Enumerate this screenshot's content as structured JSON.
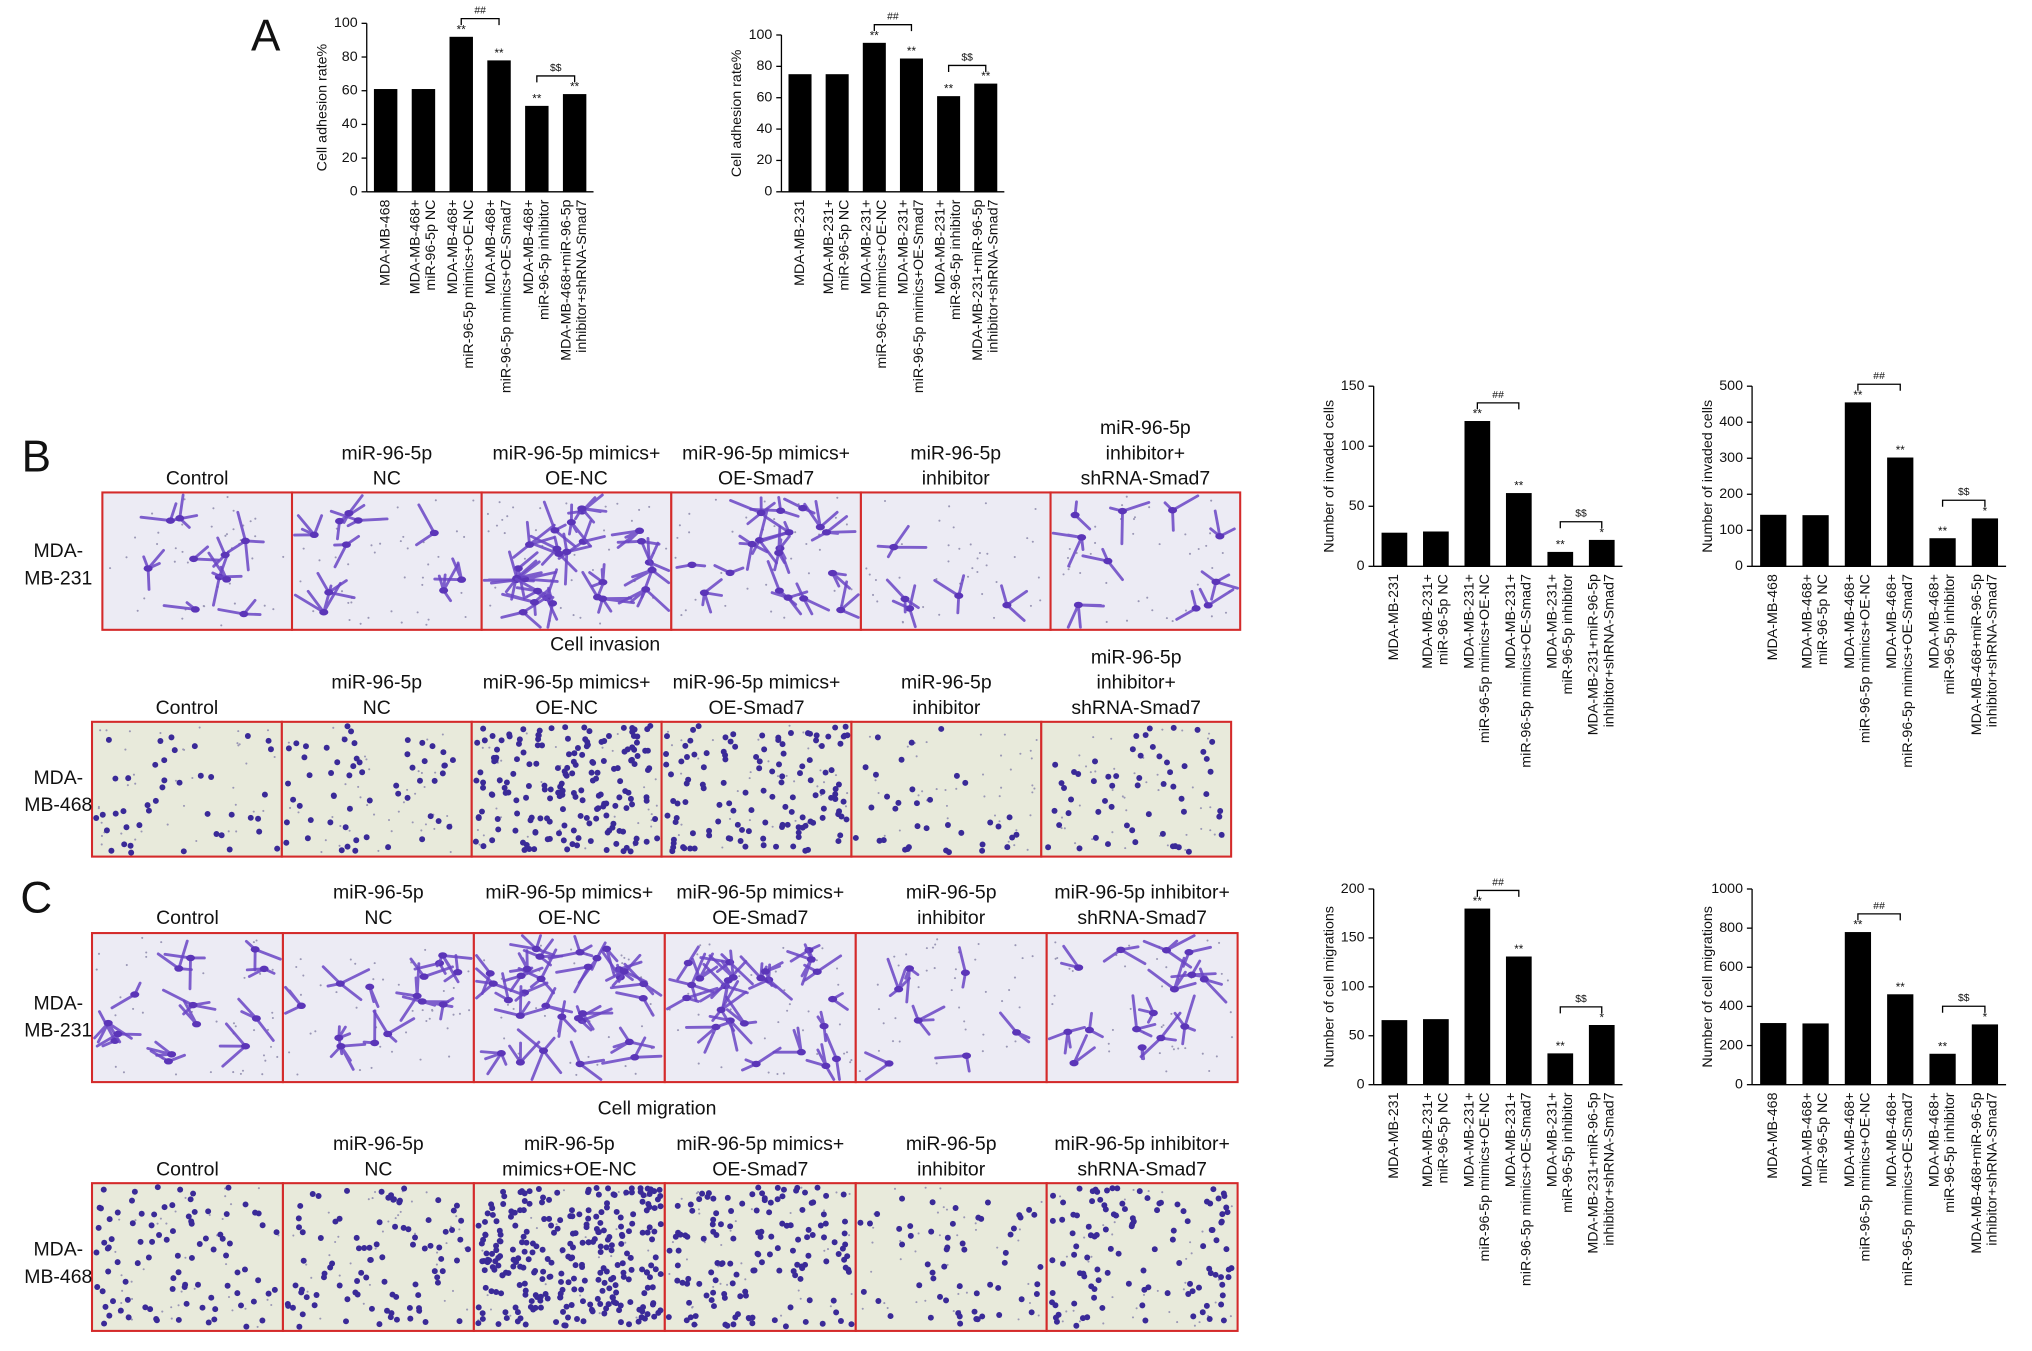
{
  "figure": {
    "panel_labels": [
      "A",
      "B",
      "C"
    ],
    "captions": [
      "Cell invasion",
      "Cell migration"
    ],
    "image_rows": [
      {
        "row_label": [
          "MDA-",
          "MB-231"
        ],
        "headers": [
          [
            "Control"
          ],
          [
            "miR-96-5p",
            "NC"
          ],
          [
            "miR-96-5p mimics+",
            "OE-NC"
          ],
          [
            "miR-96-5p mimics+",
            "OE-Smad7"
          ],
          [
            "miR-96-5p",
            "inhibitor"
          ],
          [
            "miR-96-5p",
            "inhibitor+",
            "shRNA-Smad7"
          ]
        ]
      },
      {
        "row_label": [
          "MDA-",
          "MB-468"
        ],
        "headers": [
          [
            "Control"
          ],
          [
            "miR-96-5p",
            "NC"
          ],
          [
            "miR-96-5p mimics+",
            "OE-NC"
          ],
          [
            "miR-96-5p mimics+",
            "OE-Smad7"
          ],
          [
            "miR-96-5p",
            "inhibitor"
          ],
          [
            "miR-96-5p",
            "inhibitor+",
            "shRNA-Smad7"
          ]
        ]
      },
      {
        "row_label": [
          "MDA-",
          "MB-231"
        ],
        "headers": [
          [
            "Control"
          ],
          [
            "miR-96-5p",
            "NC"
          ],
          [
            "miR-96-5p mimics+",
            "OE-NC"
          ],
          [
            "miR-96-5p mimics+",
            "OE-Smad7"
          ],
          [
            "miR-96-5p",
            "inhibitor"
          ],
          [
            "miR-96-5p inhibitor+",
            "shRNA-Smad7"
          ]
        ]
      },
      {
        "row_label": [
          "MDA-",
          "MB-468"
        ],
        "headers": [
          [
            "Control"
          ],
          [
            "miR-96-5p",
            "NC"
          ],
          [
            "miR-96-5p",
            "mimics+OE-NC"
          ],
          [
            "miR-96-5p mimics+",
            "OE-Smad7"
          ],
          [
            "miR-96-5p",
            "inhibitor"
          ],
          [
            "miR-96-5p inhibitor+",
            "shRNA-Smad7"
          ]
        ]
      }
    ]
  },
  "chart_data": [
    {
      "type": "bar",
      "y_label": "Cell adhesion rate%",
      "color": "#000000",
      "ylim": [
        0,
        100
      ],
      "yticks": [
        0,
        20,
        40,
        60,
        80,
        100
      ],
      "categories": [
        [
          "MDA-MB-468"
        ],
        [
          "MDA-MB-468+",
          "miR-96-5p NC"
        ],
        [
          "MDA-MB-468+",
          "miR-96-5p mimics+OE-NC"
        ],
        [
          "MDA-MB-468+",
          "miR-96-5p mimics+OE-Smad7"
        ],
        [
          "MDA-MB-468+",
          "miR-96-5p inhibitor"
        ],
        [
          "MDA-MB-468+miR-96-5p",
          "inhibitor+shRNA-Smad7"
        ]
      ],
      "values": [
        61,
        61,
        92,
        78,
        51,
        58
      ],
      "significance": [
        null,
        null,
        "**",
        "**",
        "**",
        "**"
      ],
      "brackets": [
        "##",
        "$$"
      ]
    },
    {
      "type": "bar",
      "y_label": "Cell adhesion rate%",
      "color": "#000000",
      "ylim": [
        0,
        100
      ],
      "yticks": [
        0,
        20,
        40,
        60,
        80,
        100
      ],
      "categories": [
        [
          "MDA-MB-231"
        ],
        [
          "MDA-MB-231+",
          "miR-96-5p NC"
        ],
        [
          "MDA-MB-231+",
          "miR-96-5p mimics+OE-NC"
        ],
        [
          "MDA-MB-231+",
          "miR-96-5p mimics+OE-Smad7"
        ],
        [
          "MDA-MB-231+",
          "miR-96-5p inhibitor"
        ],
        [
          "MDA-MB-231+miR-96-5p",
          "inhibitor+shRNA-Smad7"
        ]
      ],
      "values": [
        75,
        75,
        95,
        85,
        61,
        69
      ],
      "significance": [
        null,
        null,
        "**",
        "**",
        "**",
        "**"
      ],
      "brackets": [
        "##",
        "$$"
      ]
    },
    {
      "type": "bar",
      "y_label": "Number of invaded cells",
      "color": "#000000",
      "ylim": [
        0,
        150
      ],
      "yticks": [
        0,
        50,
        100,
        150
      ],
      "categories": [
        [
          "MDA-MB-231"
        ],
        [
          "MDA-MB-231+",
          "miR-96-5p NC"
        ],
        [
          "MDA-MB-231+",
          "miR-96-5p mimics+OE-NC"
        ],
        [
          "MDA-MB-231+",
          "miR-96-5p mimics+OE-Smad7"
        ],
        [
          "MDA-MB-231+",
          "miR-96-5p inhibitor"
        ],
        [
          "MDA-MB-231+miR-96-5p",
          "inhibitor+shRNA-Smad7"
        ]
      ],
      "values": [
        28,
        29,
        121,
        61,
        12,
        22
      ],
      "significance": [
        null,
        null,
        "**",
        "**",
        "**",
        "*"
      ],
      "brackets": [
        "##",
        "$$"
      ]
    },
    {
      "type": "bar",
      "y_label": "Number of invaded cells",
      "color": "#000000",
      "ylim": [
        0,
        500
      ],
      "yticks": [
        0,
        100,
        200,
        300,
        400,
        500
      ],
      "categories": [
        [
          "MDA-MB-468"
        ],
        [
          "MDA-MB-468+",
          "miR-96-5p NC"
        ],
        [
          "MDA-MB-468+",
          "miR-96-5p mimics+OE-NC"
        ],
        [
          "MDA-MB-468+",
          "miR-96-5p mimics+OE-Smad7"
        ],
        [
          "MDA-MB-468+",
          "miR-96-5p inhibitor"
        ],
        [
          "MDA-MB-468+miR-96-5p",
          "inhibitor+shRNA-Smad7"
        ]
      ],
      "values": [
        143,
        142,
        455,
        302,
        78,
        133
      ],
      "significance": [
        null,
        null,
        "**",
        "**",
        "**",
        "*"
      ],
      "brackets": [
        "##",
        "$$"
      ]
    },
    {
      "type": "bar",
      "y_label": "Number of cell migrations",
      "color": "#000000",
      "ylim": [
        0,
        200
      ],
      "yticks": [
        0,
        50,
        100,
        150,
        200
      ],
      "categories": [
        [
          "MDA-MB-231"
        ],
        [
          "MDA-MB-231+",
          "miR-96-5p NC"
        ],
        [
          "MDA-MB-231+",
          "miR-96-5p mimics+OE-NC"
        ],
        [
          "MDA-MB-231+",
          "miR-96-5p mimics+OE-Smad7"
        ],
        [
          "MDA-MB-231+",
          "miR-96-5p inhibitor"
        ],
        [
          "MDA-MB-231+miR-96-5p",
          "inhibitor+shRNA-Smad7"
        ]
      ],
      "values": [
        66,
        67,
        180,
        131,
        32,
        61
      ],
      "significance": [
        null,
        null,
        "**",
        "**",
        "**",
        "*"
      ],
      "brackets": [
        "##",
        "$$"
      ]
    },
    {
      "type": "bar",
      "y_label": "Number of cell migrations",
      "color": "#000000",
      "ylim": [
        0,
        1000
      ],
      "yticks": [
        0,
        200,
        400,
        600,
        800,
        1000
      ],
      "categories": [
        [
          "MDA-MB-468"
        ],
        [
          "MDA-MB-468+",
          "miR-96-5p NC"
        ],
        [
          "MDA-MB-468+",
          "miR-96-5p mimics+OE-NC"
        ],
        [
          "MDA-MB-468+",
          "miR-96-5p mimics+OE-Smad7"
        ],
        [
          "MDA-MB-468+",
          "miR-96-5p inhibitor"
        ],
        [
          "MDA-MB-468+miR-96-5p",
          "inhibitor+shRNA-Smad7"
        ]
      ],
      "values": [
        315,
        313,
        780,
        462,
        158,
        308
      ],
      "significance": [
        null,
        null,
        "**",
        "**",
        "**",
        "*"
      ],
      "brackets": [
        "##",
        "$$"
      ]
    }
  ]
}
